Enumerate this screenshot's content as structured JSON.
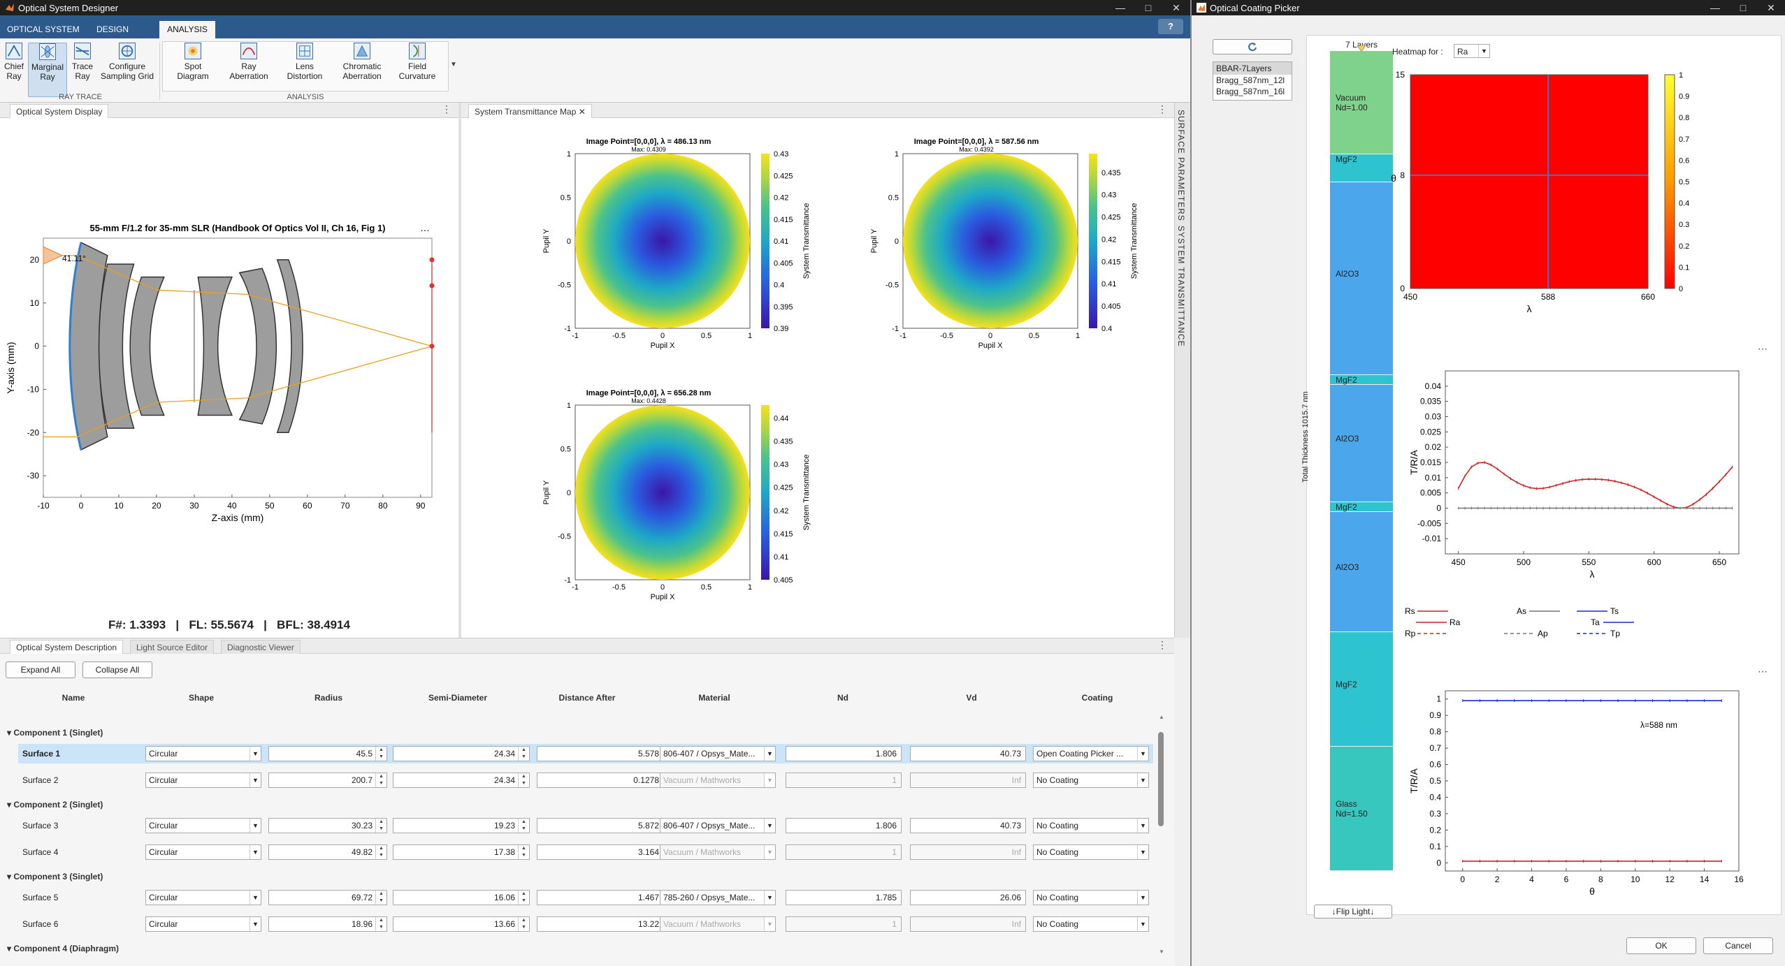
{
  "main_window": {
    "title": "Optical System Designer",
    "ribbon_tabs": [
      "OPTICAL SYSTEM",
      "DESIGN",
      "ANALYSIS"
    ],
    "help_label": "?",
    "ray_trace": {
      "group_label": "RAY TRACE",
      "buttons": [
        {
          "label": "Chief\nRay",
          "icon": "chief-ray-icon"
        },
        {
          "label": "Marginal\nRay",
          "icon": "marginal-ray-icon",
          "selected": true
        },
        {
          "label": "Trace\nRay",
          "icon": "trace-ray-icon"
        },
        {
          "label": "Configure\nSampling Grid",
          "icon": "sampling-grid-icon"
        }
      ]
    },
    "analysis": {
      "group_label": "ANALYSIS",
      "buttons": [
        {
          "label": "Spot\nDiagram",
          "icon": "spot-diagram-icon"
        },
        {
          "label": "Ray\nAberration",
          "icon": "ray-aberration-icon"
        },
        {
          "label": "Lens\nDistortion",
          "icon": "lens-distortion-icon"
        },
        {
          "label": "Chromatic\nAberration",
          "icon": "chromatic-aberration-icon"
        },
        {
          "label": "Field\nCurvature",
          "icon": "field-curvature-icon"
        }
      ]
    },
    "optical_display": {
      "tab": "Optical System Display",
      "plot_title": "55-mm F/1.2 for 35-mm SLR (Handbook Of Optics Vol II, Ch 16, Fig 1)",
      "angle_label": "41.11°",
      "xlabel": "Z-axis (mm)",
      "ylabel": "Y-axis (mm)",
      "x_ticks": [
        "-10",
        "0",
        "10",
        "20",
        "30",
        "40",
        "50",
        "60",
        "70",
        "80",
        "90"
      ],
      "y_ticks": [
        "20",
        "10",
        "0",
        "-10",
        "-20",
        "-30"
      ],
      "footer": "F#: 1.3393   |   FL: 55.5674   |   BFL: 38.4914"
    },
    "transmittance": {
      "tab": "System Transmittance Map",
      "plots": [
        {
          "title": "Image Point=[0,0,0], λ = 486.13 nm",
          "subtitle": "Max: 0.4309",
          "cbar": [
            "0.43",
            "0.425",
            "0.42",
            "0.415",
            "0.41",
            "0.405",
            "0.4",
            "0.395",
            "0.39"
          ],
          "cmin": 0.39,
          "cmax": 0.43
        },
        {
          "title": "Image Point=[0,0,0], λ = 587.56 nm",
          "subtitle": "Max: 0.4392",
          "cbar": [
            "0.435",
            "0.43",
            "0.425",
            "0.42",
            "0.415",
            "0.41",
            "0.405",
            "0.4"
          ],
          "cmin": 0.4,
          "cmax": 0.4392
        },
        {
          "title": "Image Point=[0,0,0], λ = 656.28 nm",
          "subtitle": "Max: 0.4428",
          "cbar": [
            "0.44",
            "0.435",
            "0.43",
            "0.425",
            "0.42",
            "0.415",
            "0.41",
            "0.405"
          ],
          "cmin": 0.405,
          "cmax": 0.4428
        }
      ],
      "xlabel": "Pupil X",
      "ylabel": "Pupil Y",
      "cbar_label": "System Transmittance",
      "ticks": [
        "-1",
        "-0.5",
        "0",
        "0.5",
        "1"
      ],
      "yticks": [
        "1",
        "0.5",
        "0",
        "-0.5",
        "-1"
      ]
    },
    "side_tabs": [
      "SURFACE PARAMETERS",
      "SYSTEM TRANSMITTANCE"
    ],
    "bottom_tabs": [
      "Optical System Description",
      "Light Source Editor",
      "Diagnostic Viewer"
    ],
    "expand_all": "Expand All",
    "collapse_all": "Collapse All",
    "columns": [
      "Name",
      "Shape",
      "Radius",
      "Semi-Diameter",
      "Distance After",
      "Material",
      "Nd",
      "Vd",
      "Coating"
    ],
    "components": [
      {
        "name": "Component 1 (Singlet)",
        "surfaces": [
          {
            "name": "Surface 1",
            "shape": "Circular",
            "radius": "45.5",
            "semi": "24.34",
            "dist": "5.578",
            "material": "806-407 / Opsys_Mate...",
            "nd": "1.806",
            "vd": "40.73",
            "coating": "Open Coating Picker ...",
            "selected": true,
            "disabled": false
          },
          {
            "name": "Surface 2",
            "shape": "Circular",
            "radius": "200.7",
            "semi": "24.34",
            "dist": "0.1278",
            "material": "Vacuum / Mathworks",
            "nd": "1",
            "vd": "Inf",
            "coating": "No Coating",
            "selected": false,
            "disabled": true
          }
        ]
      },
      {
        "name": "Component 2 (Singlet)",
        "surfaces": [
          {
            "name": "Surface 3",
            "shape": "Circular",
            "radius": "30.23",
            "semi": "19.23",
            "dist": "5.872",
            "material": "806-407 / Opsys_Mate...",
            "nd": "1.806",
            "vd": "40.73",
            "coating": "No Coating",
            "selected": false,
            "disabled": false
          },
          {
            "name": "Surface 4",
            "shape": "Circular",
            "radius": "49.82",
            "semi": "17.38",
            "dist": "3.164",
            "material": "Vacuum / Mathworks",
            "nd": "1",
            "vd": "Inf",
            "coating": "No Coating",
            "selected": false,
            "disabled": true
          }
        ]
      },
      {
        "name": "Component 3 (Singlet)",
        "surfaces": [
          {
            "name": "Surface 5",
            "shape": "Circular",
            "radius": "69.72",
            "semi": "16.06",
            "dist": "1.467",
            "material": "785-260 / Opsys_Mate...",
            "nd": "1.785",
            "vd": "26.06",
            "coating": "No Coating",
            "selected": false,
            "disabled": false
          },
          {
            "name": "Surface 6",
            "shape": "Circular",
            "radius": "18.96",
            "semi": "13.66",
            "dist": "13.22",
            "material": "Vacuum / Mathworks",
            "nd": "1",
            "vd": "Inf",
            "coating": "No Coating",
            "selected": false,
            "disabled": true
          }
        ]
      },
      {
        "name": "Component 4 (Diaphragm)",
        "surfaces": []
      }
    ]
  },
  "coating_window": {
    "title": "Optical Coating Picker",
    "refresh_icon": "refresh-icon",
    "coating_list": [
      "BBAR-7Layers",
      "Bragg_587nm_12l",
      "Bragg_587nm_16l"
    ],
    "stack_title": "7 Layers",
    "thickness_label": "Total Thickness 1015.7 nm",
    "layers": [
      {
        "name": "Vacuum",
        "sub": "Nd=1.00",
        "color": "#7fd28c"
      },
      {
        "name": "MgF2",
        "sub": "",
        "color": "#2ec4cf"
      },
      {
        "name": "Al2O3",
        "sub": "",
        "color": "#4ba6ec"
      },
      {
        "name": "MgF2",
        "sub": "",
        "color": "#2ec4cf"
      },
      {
        "name": "Al2O3",
        "sub": "",
        "color": "#4ba6ec"
      },
      {
        "name": "MgF2",
        "sub": "",
        "color": "#2ec4cf"
      },
      {
        "name": "Al2O3",
        "sub": "",
        "color": "#4ba6ec"
      },
      {
        "name": "MgF2",
        "sub": "",
        "color": "#2ec4cf"
      },
      {
        "name": "Glass",
        "sub": "Nd=1.50",
        "color": "#38c7bf"
      }
    ],
    "heatmap_label": "Heatmap for :",
    "heatmap_value": "Ra",
    "flip_light": "↓Flip Light↓",
    "ok": "OK",
    "cancel": "Cancel",
    "heatmap": {
      "xlabel": "λ",
      "ylabel": "θ",
      "x_ticks": [
        "450",
        "588",
        "660"
      ],
      "y_ticks": [
        "15",
        "8",
        "0"
      ],
      "cbar": [
        "1",
        "0.9",
        "0.8",
        "0.7",
        "0.6",
        "0.5",
        "0.4",
        "0.3",
        "0.2",
        "0.1",
        "0"
      ]
    },
    "legend": [
      {
        "label": "Rs",
        "style": "red-solid"
      },
      {
        "label": "Ra",
        "style": "red-solid"
      },
      {
        "label": "Rp",
        "style": "red-dash"
      },
      {
        "label": "As",
        "style": "gray-solid"
      },
      {
        "label": "Ap",
        "style": "gray-dash"
      },
      {
        "label": "Ts",
        "style": "blue-solid"
      },
      {
        "label": "Ta",
        "style": "blue-solid"
      },
      {
        "label": "Tp",
        "style": "blue-dash"
      }
    ],
    "annotation": "λ=588 nm"
  },
  "chart_data": [
    {
      "type": "line",
      "title": "",
      "xlabel": "λ",
      "ylabel": "T/R/A",
      "xlim": [
        440,
        665
      ],
      "ylim": [
        -0.015,
        0.045
      ],
      "x_ticks": [
        "450",
        "500",
        "550",
        "600",
        "650"
      ],
      "y_ticks": [
        "0.04",
        "0.035",
        "0.03",
        "0.025",
        "0.02",
        "0.015",
        "0.01",
        "0.005",
        "0",
        "-0.005",
        "-0.01"
      ],
      "x": [
        450,
        455,
        460,
        465,
        470,
        475,
        480,
        485,
        490,
        495,
        500,
        505,
        510,
        515,
        520,
        525,
        530,
        535,
        540,
        545,
        550,
        555,
        560,
        565,
        570,
        575,
        580,
        585,
        590,
        595,
        600,
        605,
        610,
        615,
        620,
        625,
        630,
        635,
        640,
        645,
        650,
        655,
        660
      ],
      "series": [
        {
          "name": "Ra",
          "values": [
            0.0065,
            0.0105,
            0.0135,
            0.0148,
            0.015,
            0.0142,
            0.0128,
            0.0112,
            0.0097,
            0.0084,
            0.0074,
            0.0067,
            0.0064,
            0.0065,
            0.0069,
            0.0075,
            0.0081,
            0.0087,
            0.0091,
            0.0094,
            0.0095,
            0.0095,
            0.0094,
            0.0092,
            0.0088,
            0.0083,
            0.0077,
            0.0069,
            0.006,
            0.0049,
            0.0037,
            0.0025,
            0.0013,
            0.0004,
            0,
            0.0002,
            0.0013,
            0.0028,
            0.0045,
            0.0065,
            0.0087,
            0.011,
            0.0135
          ]
        },
        {
          "name": "Ta",
          "values": [
            0,
            0,
            0,
            0,
            0,
            0,
            0,
            0,
            0,
            0,
            0,
            0,
            0,
            0,
            0,
            0,
            0,
            0,
            0,
            0,
            0,
            0,
            0,
            0,
            0,
            0,
            0,
            0,
            0,
            0,
            0,
            0,
            0,
            0,
            0,
            0,
            0,
            0,
            0,
            0,
            0,
            0,
            0
          ]
        }
      ]
    },
    {
      "type": "line",
      "title": "",
      "xlabel": "θ",
      "ylabel": "T/R/A",
      "xlim": [
        -1,
        16
      ],
      "ylim": [
        -0.05,
        1.05
      ],
      "x_ticks": [
        "0",
        "2",
        "4",
        "6",
        "8",
        "10",
        "12",
        "14",
        "16"
      ],
      "y_ticks": [
        "1",
        "0.9",
        "0.8",
        "0.7",
        "0.6",
        "0.5",
        "0.4",
        "0.3",
        "0.2",
        "0.1",
        "0"
      ],
      "x": [
        0,
        1,
        2,
        3,
        4,
        5,
        6,
        7,
        8,
        9,
        10,
        11,
        12,
        13,
        14,
        15
      ],
      "series": [
        {
          "name": "Ta",
          "values": [
            0.99,
            0.99,
            0.99,
            0.99,
            0.99,
            0.99,
            0.99,
            0.99,
            0.99,
            0.99,
            0.99,
            0.99,
            0.99,
            0.99,
            0.99,
            0.99
          ]
        },
        {
          "name": "Ra",
          "values": [
            0.01,
            0.01,
            0.01,
            0.01,
            0.01,
            0.01,
            0.01,
            0.01,
            0.01,
            0.01,
            0.01,
            0.01,
            0.01,
            0.01,
            0.01,
            0.01
          ]
        }
      ]
    }
  ]
}
